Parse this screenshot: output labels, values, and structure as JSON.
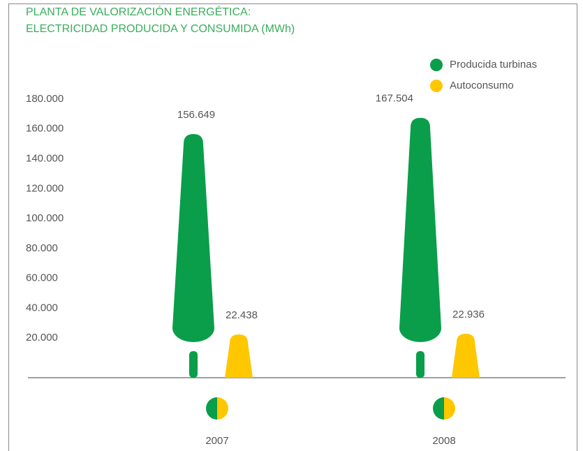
{
  "chart_data": {
    "type": "tree-bar",
    "title": [
      "PLANTA DE VALORIZACIÓN ENERGÉTICA:",
      "ELECTRICIDAD PRODUCIDA Y CONSUMIDA (MWh)"
    ],
    "categories": [
      "2007",
      "2008"
    ],
    "series": [
      {
        "name": "Producida turbinas",
        "color": "#0a9e4a",
        "values": [
          156649,
          167504
        ],
        "value_labels": [
          "156.649",
          "167.504"
        ]
      },
      {
        "name": "Autoconsumo",
        "color": "#ffc700",
        "values": [
          22438,
          22936
        ],
        "value_labels": [
          "22.438",
          "22.936"
        ]
      }
    ],
    "ylim": [
      0,
      180000
    ],
    "yticks": [
      {
        "value": 20000,
        "label": "20.000"
      },
      {
        "value": 40000,
        "label": "40.000"
      },
      {
        "value": 60000,
        "label": "60.000"
      },
      {
        "value": 80000,
        "label": "80.000"
      },
      {
        "value": 100000,
        "label": "100.000"
      },
      {
        "value": 120000,
        "label": "120.000"
      },
      {
        "value": 140000,
        "label": "140.000"
      },
      {
        "value": 160000,
        "label": "160.000"
      },
      {
        "value": 180000,
        "label": "180.000"
      }
    ],
    "grid": false
  }
}
